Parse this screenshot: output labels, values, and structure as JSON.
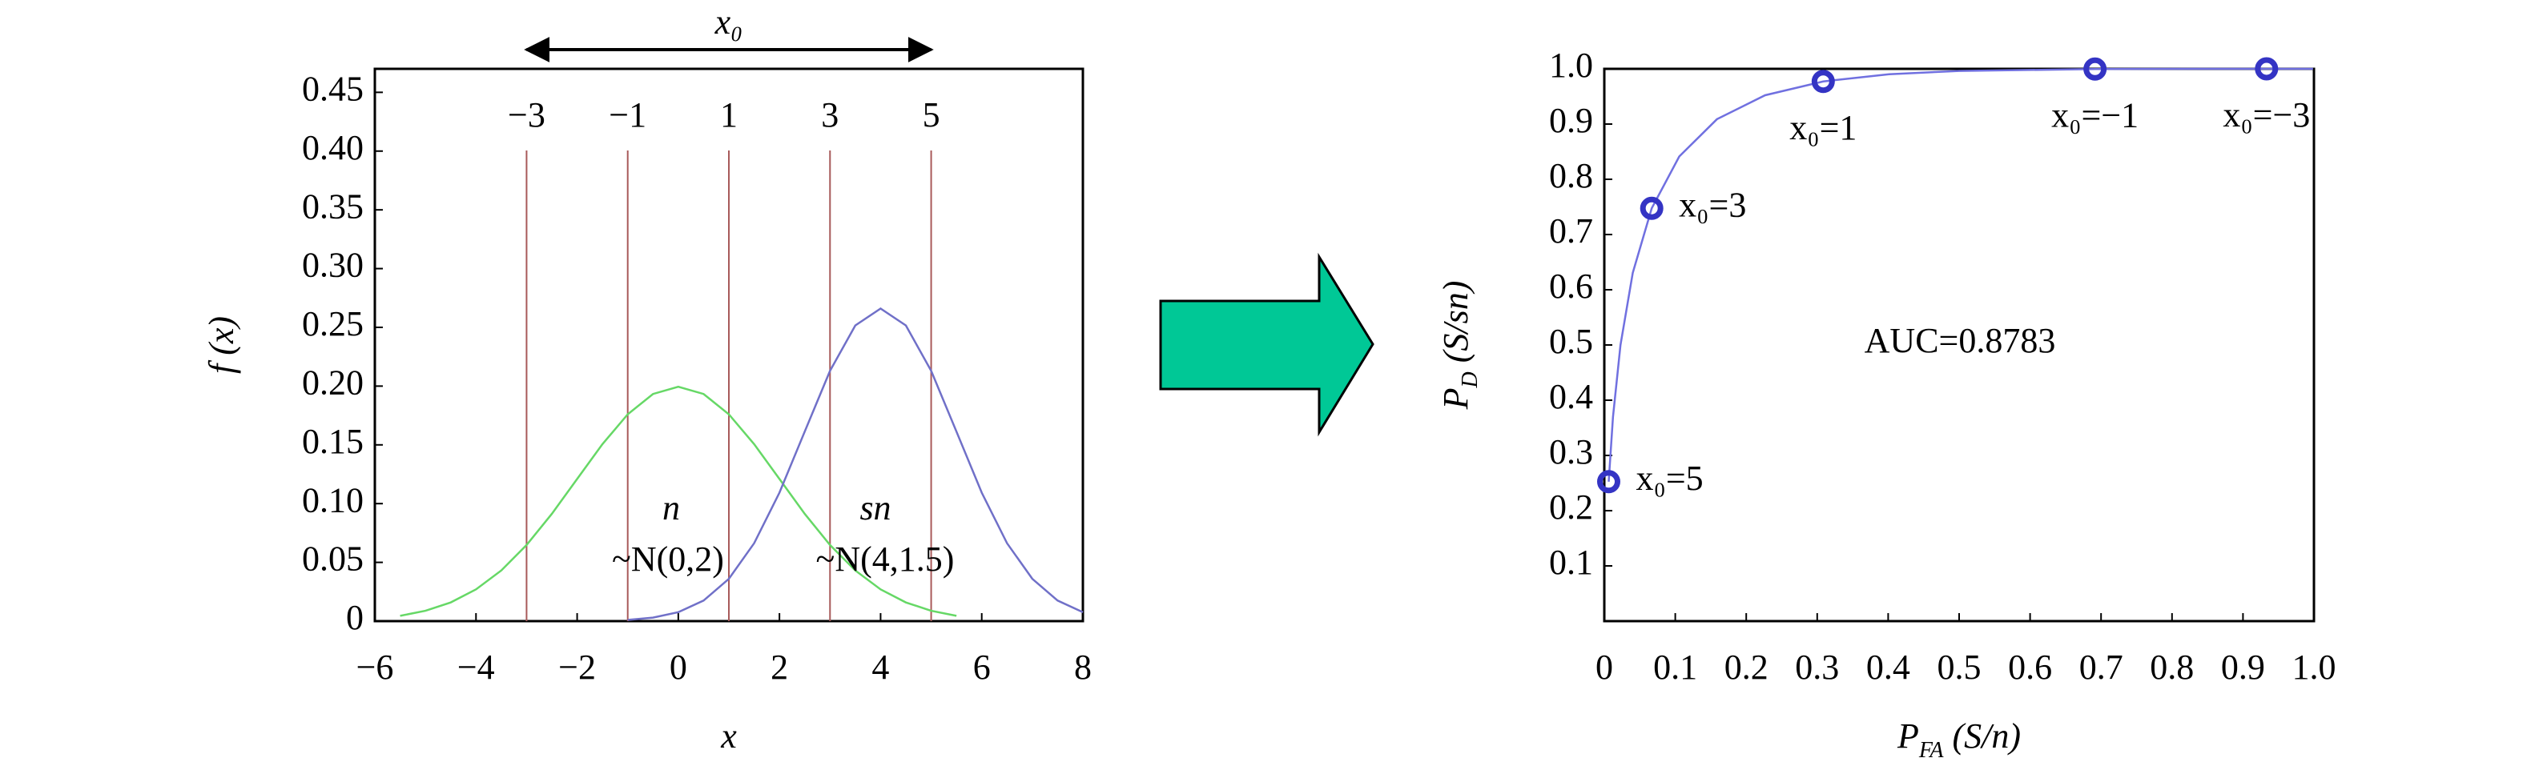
{
  "chart_data": [
    {
      "type": "line",
      "x_label": "x",
      "y_label": "f (x)",
      "xlim": [
        -6,
        8
      ],
      "ylim": [
        0,
        0.47
      ],
      "xticks": [
        {
          "value": -6,
          "label": "−6"
        },
        {
          "value": -4,
          "label": "−4"
        },
        {
          "value": -2,
          "label": "−2"
        },
        0,
        2,
        4,
        6,
        8
      ],
      "yticks": [
        0,
        0.05,
        {
          "value": 0.1,
          "label": "0.10"
        },
        0.15,
        {
          "value": 0.2,
          "label": "0.20"
        },
        0.25,
        {
          "value": 0.3,
          "label": "0.30"
        },
        0.35,
        {
          "value": 0.4,
          "label": "0.40"
        },
        0.45
      ],
      "grid": false,
      "series": [
        {
          "name": "n",
          "label": "~N(0,2)",
          "color": "#66d866",
          "x": [
            -5.5,
            -5,
            -4.5,
            -4,
            -3.5,
            -3,
            -2.5,
            -2,
            -1.5,
            -1,
            -0.5,
            0,
            0.5,
            1,
            1.5,
            2,
            2.5,
            3,
            3.5,
            4,
            4.5,
            5,
            5.5
          ],
          "values": [
            0.0045,
            0.0088,
            0.0159,
            0.027,
            0.0431,
            0.0648,
            0.0913,
            0.121,
            0.1506,
            0.176,
            0.1933,
            0.1995,
            0.1933,
            0.176,
            0.1506,
            0.121,
            0.0913,
            0.0648,
            0.0431,
            0.027,
            0.0159,
            0.0088,
            0.0045
          ]
        },
        {
          "name": "sn",
          "label": "~N(4,1.5)",
          "color": "#7070c8",
          "x": [
            -1,
            -0.5,
            0,
            0.5,
            1,
            1.5,
            2,
            2.5,
            3,
            3.5,
            4,
            4.5,
            5,
            5.5,
            6,
            6.5,
            7,
            7.5,
            8
          ],
          "values": [
            0.001,
            0.003,
            0.0076,
            0.0175,
            0.036,
            0.0663,
            0.1093,
            0.1613,
            0.213,
            0.2516,
            0.266,
            0.2516,
            0.213,
            0.1613,
            0.1093,
            0.0663,
            0.036,
            0.0175,
            0.0076
          ]
        }
      ],
      "thresholds": [
        {
          "value": -3,
          "label": "−3"
        },
        {
          "value": -1,
          "label": "−1"
        },
        {
          "value": 1,
          "label": "1"
        },
        {
          "value": 3,
          "label": "3"
        },
        {
          "value": 5,
          "label": "5"
        }
      ],
      "threshold_color": "#a85a5a",
      "arrow_label": "x₀"
    },
    {
      "type": "line",
      "x_label": {
        "main": "P",
        "sub": "FA",
        "rest": " (S/n)"
      },
      "y_label": {
        "main": "P",
        "sub": "D",
        "rest": " (S/sn)"
      },
      "xlim": [
        0,
        1
      ],
      "ylim": [
        0,
        1
      ],
      "xticks": [
        0,
        0.1,
        0.2,
        0.3,
        0.4,
        0.5,
        0.6,
        0.7,
        0.8,
        0.9,
        {
          "value": 1,
          "label": "1.0"
        }
      ],
      "yticks": [
        0.1,
        0.2,
        0.3,
        0.4,
        0.5,
        0.6,
        0.7,
        0.8,
        0.9,
        {
          "value": 1,
          "label": "1.0"
        }
      ],
      "grid": false,
      "annotation": "AUC=0.8783",
      "series": [
        {
          "color": "#7070e0",
          "x": [
            0.0062,
            0.0122,
            0.0228,
            0.0401,
            0.0668,
            0.1056,
            0.1587,
            0.2266,
            0.3085,
            0.4013,
            0.5,
            0.6915,
            0.8413,
            0.9332,
            0.9987
          ],
          "values": [
            0.2525,
            0.3694,
            0.5,
            0.6306,
            0.7475,
            0.8413,
            0.9088,
            0.9522,
            0.9772,
            0.9902,
            0.9962,
            0.9996,
            1.0,
            1.0,
            1.0
          ]
        },
        {
          "color": "#3434c4",
          "markers": true,
          "x": [
            0.0062,
            0.0668,
            0.3085,
            0.6915,
            0.9332
          ],
          "values": [
            0.2525,
            0.7475,
            0.9772,
            0.9996,
            1.0
          ],
          "point_labels": [
            "x₀=5",
            "x₀=3",
            "x₀=1",
            "x₀=−1",
            "x₀=−3"
          ]
        }
      ]
    }
  ]
}
